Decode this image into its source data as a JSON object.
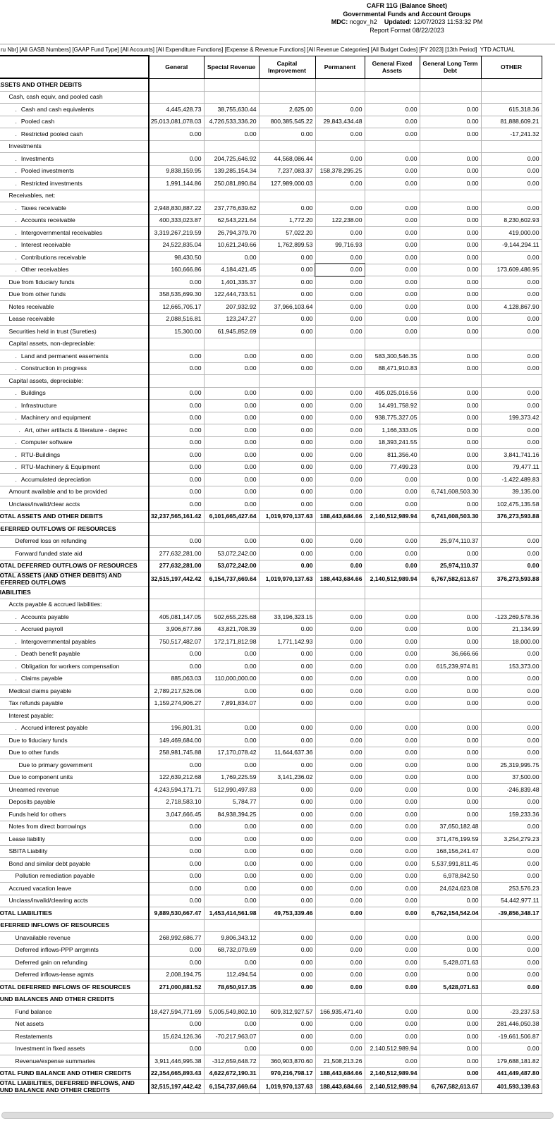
{
  "header": {
    "title": "CAFR 11G (Balance Sheet)",
    "subtitle": "Governmental Funds and Account Groups",
    "mdc_label": "MDC:",
    "mdc_value": " ncgov_h2",
    "updated_label": "Updated:",
    "updated_value": " 12/07/2023 11:53:32 PM",
    "report_format": "Report Format 08/22/2023"
  },
  "filter_bar": {
    "text": "ru Nbr] [All GASB Numbers] [GAAP Fund Type] [All Accounts] [All Expenditure Functions] [Expense & Revenue Functions] [All Revenue Categories] [All Budget Codes] [FY 2023] [13th Period]  YTD ACTUAL"
  },
  "table": {
    "columns": [
      "General",
      "Special Revenue",
      "Capital Improvement",
      "Permanent",
      "General Fixed Assets",
      "General Long Term Debt",
      "OTHER"
    ],
    "rows": [
      {
        "l": "ASSETS AND OTHER DEBITS",
        "i": 0,
        "b": 1
      },
      {
        "l": "Cash, cash equiv, and pooled cash",
        "i": 1
      },
      {
        "l": "Cash and cash equivalents",
        "i": 2,
        "d": 1,
        "v": [
          "4,445,428.73",
          "38,755,630.44",
          "2,625.00",
          "0.00",
          "0.00",
          "0.00",
          "615,318.36"
        ]
      },
      {
        "l": "Pooled cash",
        "i": 2,
        "d": 1,
        "v": [
          "25,013,081,078.03",
          "4,726,533,336.20",
          "800,385,545.22",
          "29,843,434.48",
          "0.00",
          "0.00",
          "81,888,609.21"
        ]
      },
      {
        "l": "Restricted pooled cash",
        "i": 2,
        "d": 1,
        "v": [
          "0.00",
          "0.00",
          "0.00",
          "0.00",
          "0.00",
          "0.00",
          "-17,241.32"
        ]
      },
      {
        "l": "Investments",
        "i": 1
      },
      {
        "l": "Investments",
        "i": 2,
        "d": 1,
        "v": [
          "0.00",
          "204,725,646.92",
          "44,568,086.44",
          "0.00",
          "0.00",
          "0.00",
          "0.00"
        ]
      },
      {
        "l": "Pooled investments",
        "i": 2,
        "d": 1,
        "v": [
          "9,838,159.95",
          "139,285,154.34",
          "7,237,083.37",
          "158,378,295.25",
          "0.00",
          "0.00",
          "0.00"
        ]
      },
      {
        "l": "Restricted investments",
        "i": 2,
        "d": 1,
        "v": [
          "1,991,144.86",
          "250,081,890.84",
          "127,989,000.03",
          "0.00",
          "0.00",
          "0.00",
          "0.00"
        ]
      },
      {
        "l": "Receivables, net:",
        "i": 1
      },
      {
        "l": "Taxes receivable",
        "i": 2,
        "d": 1,
        "v": [
          "2,948,830,887.22",
          "237,776,639.62",
          "0.00",
          "0.00",
          "0.00",
          "0.00",
          "0.00"
        ]
      },
      {
        "l": "Accounts receivable",
        "i": 2,
        "d": 1,
        "v": [
          "400,333,023.87",
          "62,543,221.64",
          "1,772.20",
          "122,238.00",
          "0.00",
          "0.00",
          "8,230,602.93"
        ]
      },
      {
        "l": "Intergovernmental receivables",
        "i": 2,
        "d": 1,
        "v": [
          "3,319,267,219.59",
          "26,794,379.70",
          "57,022.20",
          "0.00",
          "0.00",
          "0.00",
          "419,000.00"
        ]
      },
      {
        "l": "Interest receivable",
        "i": 2,
        "d": 1,
        "v": [
          "24,522,835.04",
          "10,621,249.66",
          "1,762,899.53",
          "99,716.93",
          "0.00",
          "0.00",
          "-9,144,294.11"
        ]
      },
      {
        "l": "Contributions receivable",
        "i": 2,
        "d": 1,
        "v": [
          "98,430.50",
          "0.00",
          "0.00",
          "0.00",
          "0.00",
          "0.00",
          "0.00"
        ]
      },
      {
        "l": "Other receivables",
        "i": 2,
        "d": 1,
        "sel": 3,
        "v": [
          "160,666.86",
          "4,184,421.45",
          "0.00",
          "0.00",
          "0.00",
          "0.00",
          "173,609,486.95"
        ]
      },
      {
        "l": "Due from fiduciary funds",
        "i": 1,
        "v": [
          "0.00",
          "1,401,335.37",
          "0.00",
          "0.00",
          "0.00",
          "0.00",
          "0.00"
        ]
      },
      {
        "l": "Due from other funds",
        "i": 1,
        "v": [
          "358,535,699.30",
          "122,444,733.51",
          "0.00",
          "0.00",
          "0.00",
          "0.00",
          "0.00"
        ]
      },
      {
        "l": "Notes receivable",
        "i": 1,
        "v": [
          "12,665,705.17",
          "207,932.92",
          "37,966,103.64",
          "0.00",
          "0.00",
          "0.00",
          "4,128,867.90"
        ]
      },
      {
        "l": "Lease receivable",
        "i": 1,
        "v": [
          "2,088,516.81",
          "123,247.27",
          "0.00",
          "0.00",
          "0.00",
          "0.00",
          "0.00"
        ]
      },
      {
        "l": "Securities held in trust (Sureties)",
        "i": 1,
        "v": [
          "15,300.00",
          "61,945,852.69",
          "0.00",
          "0.00",
          "0.00",
          "0.00",
          "0.00"
        ]
      },
      {
        "l": "Capital assets, non-depreciable:",
        "i": 1
      },
      {
        "l": "Land and permanent easements",
        "i": 2,
        "d": 1,
        "v": [
          "0.00",
          "0.00",
          "0.00",
          "0.00",
          "583,300,546.35",
          "0.00",
          "0.00"
        ]
      },
      {
        "l": "Construction in progress",
        "i": 2,
        "d": 1,
        "v": [
          "0.00",
          "0.00",
          "0.00",
          "0.00",
          "88,471,910.83",
          "0.00",
          "0.00"
        ]
      },
      {
        "l": "Capital assets, depreciable:",
        "i": 1
      },
      {
        "l": "Buildings",
        "i": 2,
        "d": 1,
        "v": [
          "0.00",
          "0.00",
          "0.00",
          "0.00",
          "495,025,016.56",
          "0.00",
          "0.00"
        ]
      },
      {
        "l": "Infrastructure",
        "i": 2,
        "d": 1,
        "v": [
          "0.00",
          "0.00",
          "0.00",
          "0.00",
          "14,491,758.92",
          "0.00",
          "0.00"
        ]
      },
      {
        "l": "Machinery and equipment",
        "i": 2,
        "d": 1,
        "v": [
          "0.00",
          "0.00",
          "0.00",
          "0.00",
          "938,775,327.05",
          "0.00",
          "199,373.42"
        ]
      },
      {
        "l": "Art, other artifacts & literature - deprec",
        "i": 3,
        "d": 1,
        "v": [
          "0.00",
          "0.00",
          "0.00",
          "0.00",
          "1,166,333.05",
          "0.00",
          "0.00"
        ]
      },
      {
        "l": "Computer software",
        "i": 2,
        "d": 1,
        "v": [
          "0.00",
          "0.00",
          "0.00",
          "0.00",
          "18,393,241.55",
          "0.00",
          "0.00"
        ]
      },
      {
        "l": "RTU-Buildings",
        "i": 2,
        "d": 1,
        "v": [
          "0.00",
          "0.00",
          "0.00",
          "0.00",
          "811,356.40",
          "0.00",
          "3,841,741.16"
        ]
      },
      {
        "l": "RTU-Machinery & Equipment",
        "i": 2,
        "d": 1,
        "v": [
          "0.00",
          "0.00",
          "0.00",
          "0.00",
          "77,499.23",
          "0.00",
          "79,477.11"
        ]
      },
      {
        "l": "Accumulated depreciation",
        "i": 2,
        "d": 1,
        "v": [
          "0.00",
          "0.00",
          "0.00",
          "0.00",
          "0.00",
          "0.00",
          "-1,422,489.83"
        ]
      },
      {
        "l": "Amount available and to be provided",
        "i": 1,
        "v": [
          "0.00",
          "0.00",
          "0.00",
          "0.00",
          "0.00",
          "6,741,608,503.30",
          "39,135.00"
        ]
      },
      {
        "l": "Unclass/invalid/clear accts",
        "i": 1,
        "v": [
          "0.00",
          "0.00",
          "0.00",
          "0.00",
          "0.00",
          "0.00",
          "102,475,135.58"
        ]
      },
      {
        "l": "TOTAL ASSETS AND OTHER DEBITS",
        "i": 0,
        "b": 1,
        "v": [
          "32,237,565,161.42",
          "6,101,665,427.64",
          "1,019,970,137.63",
          "188,443,684.66",
          "2,140,512,989.94",
          "6,741,608,503.30",
          "376,273,593.88"
        ]
      },
      {
        "l": "DEFERRED OUTFLOWS OF RESOURCES",
        "i": 0,
        "b": 1
      },
      {
        "l": "Deferred loss on refunding",
        "i": 2,
        "v": [
          "0.00",
          "0.00",
          "0.00",
          "0.00",
          "0.00",
          "25,974,110.37",
          "0.00"
        ]
      },
      {
        "l": "Forward funded state aid",
        "i": 2,
        "v": [
          "277,632,281.00",
          "53,072,242.00",
          "0.00",
          "0.00",
          "0.00",
          "0.00",
          "0.00"
        ]
      },
      {
        "l": "TOTAL DEFERRED OUTFLOWS OF RESOURCES",
        "i": 0,
        "b": 1,
        "v": [
          "277,632,281.00",
          "53,072,242.00",
          "0.00",
          "0.00",
          "0.00",
          "25,974,110.37",
          "0.00"
        ]
      },
      {
        "l": "TOTAL ASSETS (AND OTHER DEBITS) AND DEFERRED OUTFLOWS",
        "i": 0,
        "b": 1,
        "v": [
          "32,515,197,442.42",
          "6,154,737,669.64",
          "1,019,970,137.63",
          "188,443,684.66",
          "2,140,512,989.94",
          "6,767,582,613.67",
          "376,273,593.88"
        ]
      },
      {
        "l": "LIABILITIES",
        "i": 0,
        "b": 1
      },
      {
        "l": "Accts payable & accrued liabilities:",
        "i": 1
      },
      {
        "l": "Accounts payable",
        "i": 2,
        "d": 1,
        "v": [
          "405,081,147.05",
          "502,655,225.68",
          "33,196,323.15",
          "0.00",
          "0.00",
          "0.00",
          "-123,269,578.36"
        ]
      },
      {
        "l": "Accrued payroll",
        "i": 2,
        "d": 1,
        "v": [
          "3,906,677.86",
          "43,821,708.39",
          "0.00",
          "0.00",
          "0.00",
          "0.00",
          "21,134.99"
        ]
      },
      {
        "l": "Intergovernmental payables",
        "i": 2,
        "d": 1,
        "v": [
          "750,517,482.07",
          "172,171,812.98",
          "1,771,142.93",
          "0.00",
          "0.00",
          "0.00",
          "18,000.00"
        ]
      },
      {
        "l": "Death benefit payable",
        "i": 2,
        "d": 1,
        "v": [
          "0.00",
          "0.00",
          "0.00",
          "0.00",
          "0.00",
          "36,666.66",
          "0.00"
        ]
      },
      {
        "l": "Obligation for workers compensation",
        "i": 2,
        "d": 1,
        "v": [
          "0.00",
          "0.00",
          "0.00",
          "0.00",
          "0.00",
          "615,239,974.81",
          "153,373.00"
        ]
      },
      {
        "l": "Claims payable",
        "i": 2,
        "d": 1,
        "v": [
          "885,063.03",
          "110,000,000.00",
          "0.00",
          "0.00",
          "0.00",
          "0.00",
          "0.00"
        ]
      },
      {
        "l": "Medical claims payable",
        "i": 1,
        "v": [
          "2,789,217,526.06",
          "0.00",
          "0.00",
          "0.00",
          "0.00",
          "0.00",
          "0.00"
        ]
      },
      {
        "l": "Tax refunds payable",
        "i": 1,
        "v": [
          "1,159,274,906.27",
          "7,891,834.07",
          "0.00",
          "0.00",
          "0.00",
          "0.00",
          "0.00"
        ]
      },
      {
        "l": "Interest payable:",
        "i": 1
      },
      {
        "l": "Accrued interest payable",
        "i": 2,
        "d": 1,
        "v": [
          "196,801.31",
          "0.00",
          "0.00",
          "0.00",
          "0.00",
          "0.00",
          "0.00"
        ]
      },
      {
        "l": "Due to fiduciary funds",
        "i": 1,
        "v": [
          "149,469,684.00",
          "0.00",
          "0.00",
          "0.00",
          "0.00",
          "0.00",
          "0.00"
        ]
      },
      {
        "l": "Due to other funds",
        "i": 1,
        "v": [
          "258,981,745.88",
          "17,170,078.42",
          "11,644,637.36",
          "0.00",
          "0.00",
          "0.00",
          "0.00"
        ]
      },
      {
        "l": "Due to primary government",
        "i": 3,
        "v": [
          "0.00",
          "0.00",
          "0.00",
          "0.00",
          "0.00",
          "0.00",
          "25,319,995.75"
        ]
      },
      {
        "l": "Due to component units",
        "i": 1,
        "v": [
          "122,639,212.68",
          "1,769,225.59",
          "3,141,236.02",
          "0.00",
          "0.00",
          "0.00",
          "37,500.00"
        ]
      },
      {
        "l": "Unearned revenue",
        "i": 1,
        "v": [
          "4,243,594,171.71",
          "512,990,497.83",
          "0.00",
          "0.00",
          "0.00",
          "0.00",
          "-246,839.48"
        ]
      },
      {
        "l": "Deposits payable",
        "i": 1,
        "v": [
          "2,718,583.10",
          "5,784.77",
          "0.00",
          "0.00",
          "0.00",
          "0.00",
          "0.00"
        ]
      },
      {
        "l": "Funds held for others",
        "i": 1,
        "v": [
          "3,047,666.45",
          "84,938,394.25",
          "0.00",
          "0.00",
          "0.00",
          "0.00",
          "159,233.36"
        ]
      },
      {
        "l": "Notes from direct borrowings",
        "i": 1,
        "v": [
          "0.00",
          "0.00",
          "0.00",
          "0.00",
          "0.00",
          "37,650,182.48",
          "0.00"
        ]
      },
      {
        "l": "Lease liability",
        "i": 1,
        "v": [
          "0.00",
          "0.00",
          "0.00",
          "0.00",
          "0.00",
          "371,476,199.59",
          "3,254,279.23"
        ]
      },
      {
        "l": "SBITA Liability",
        "i": 1,
        "v": [
          "0.00",
          "0.00",
          "0.00",
          "0.00",
          "0.00",
          "168,156,241.47",
          "0.00"
        ]
      },
      {
        "l": "Bond and similar debt payable",
        "i": 1,
        "v": [
          "0.00",
          "0.00",
          "0.00",
          "0.00",
          "0.00",
          "5,537,991,811.45",
          "0.00"
        ]
      },
      {
        "l": "Pollution remediation payable",
        "i": 2,
        "v": [
          "0.00",
          "0.00",
          "0.00",
          "0.00",
          "0.00",
          "6,978,842.50",
          "0.00"
        ]
      },
      {
        "l": "Accrued vacation leave",
        "i": 1,
        "v": [
          "0.00",
          "0.00",
          "0.00",
          "0.00",
          "0.00",
          "24,624,623.08",
          "253,576.23"
        ]
      },
      {
        "l": "Unclass/invalid/clearing accts",
        "i": 1,
        "v": [
          "0.00",
          "0.00",
          "0.00",
          "0.00",
          "0.00",
          "0.00",
          "54,442,977.11"
        ]
      },
      {
        "l": "TOTAL LIABILITIES",
        "i": 0,
        "b": 1,
        "v": [
          "9,889,530,667.47",
          "1,453,414,561.98",
          "49,753,339.46",
          "0.00",
          "0.00",
          "6,762,154,542.04",
          "-39,856,348.17"
        ]
      },
      {
        "l": "DEFERRED INFLOWS OF RESOURCES",
        "i": 0,
        "b": 1
      },
      {
        "l": "Unavailable revenue",
        "i": 2,
        "v": [
          "268,992,686.77",
          "9,806,343.12",
          "0.00",
          "0.00",
          "0.00",
          "0.00",
          "0.00"
        ]
      },
      {
        "l": "Deferred inflows-PPP arrgmnts",
        "i": 2,
        "v": [
          "0.00",
          "68,732,079.69",
          "0.00",
          "0.00",
          "0.00",
          "0.00",
          "0.00"
        ]
      },
      {
        "l": "Deferred gain on refunding",
        "i": 2,
        "v": [
          "0.00",
          "0.00",
          "0.00",
          "0.00",
          "0.00",
          "5,428,071.63",
          "0.00"
        ]
      },
      {
        "l": "Deferred inflows-lease agmts",
        "i": 2,
        "v": [
          "2,008,194.75",
          "112,494.54",
          "0.00",
          "0.00",
          "0.00",
          "0.00",
          "0.00"
        ]
      },
      {
        "l": "TOTAL DEFERRED INFLOWS OF RESOURCES",
        "i": 0,
        "b": 1,
        "v": [
          "271,000,881.52",
          "78,650,917.35",
          "0.00",
          "0.00",
          "0.00",
          "5,428,071.63",
          "0.00"
        ]
      },
      {
        "l": "FUND BALANCES AND OTHER CREDITS",
        "i": 0,
        "b": 1
      },
      {
        "l": "Fund balance",
        "i": 2,
        "v": [
          "18,427,594,771.69",
          "5,005,549,802.10",
          "609,312,927.57",
          "166,935,471.40",
          "0.00",
          "0.00",
          "-23,237.53"
        ]
      },
      {
        "l": "Net assets",
        "i": 2,
        "v": [
          "0.00",
          "0.00",
          "0.00",
          "0.00",
          "0.00",
          "0.00",
          "281,446,050.38"
        ]
      },
      {
        "l": "Restatements",
        "i": 2,
        "v": [
          "15,624,126.36",
          "-70,217,963.07",
          "0.00",
          "0.00",
          "0.00",
          "0.00",
          "-19,661,506.87"
        ]
      },
      {
        "l": "Investment in fixed assets",
        "i": 2,
        "v": [
          "0.00",
          "0.00",
          "0.00",
          "0.00",
          "2,140,512,989.94",
          "0.00",
          "0.00"
        ]
      },
      {
        "l": "Revenue/expense summaries",
        "i": 2,
        "v": [
          "3,911,446,995.38",
          "-312,659,648.72",
          "360,903,870.60",
          "21,508,213.26",
          "0.00",
          "0.00",
          "179,688,181.82"
        ]
      },
      {
        "l": "TOTAL FUND BALANCE AND OTHER CREDITS",
        "i": 0,
        "b": 1,
        "v": [
          "22,354,665,893.43",
          "4,622,672,190.31",
          "970,216,798.17",
          "188,443,684.66",
          "2,140,512,989.94",
          "0.00",
          "441,449,487.80"
        ]
      },
      {
        "l": "TOTAL LIABILITIES, DEFERRED INFLOWS, AND FUND BALANCE AND OTHER CREDITS",
        "i": 0,
        "b": 1,
        "v": [
          "32,515,197,442.42",
          "6,154,737,669.64",
          "1,019,970,137.63",
          "188,443,684.66",
          "2,140,512,989.94",
          "6,767,582,613.67",
          "401,593,139.63"
        ]
      }
    ]
  }
}
